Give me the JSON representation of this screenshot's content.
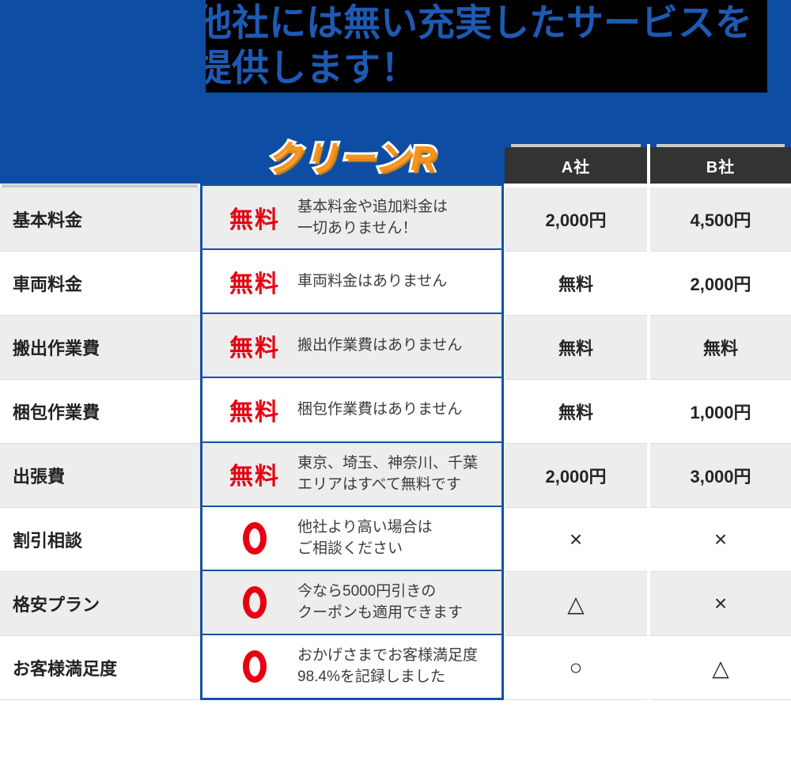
{
  "banner": {
    "headline_line1": "他社には無い充実したサービスを",
    "headline_line2": "提供します！",
    "logo": "クリーンR",
    "colors": {
      "banner_blue": "#0d4ea4",
      "headline_text_blue": "#1d5ab4",
      "headline_bg": "#000000",
      "logo_orange": "#f7941e",
      "frame_blue": "#1552a6",
      "accent_red": "#e60012",
      "header_dark": "#333333",
      "row_gray": "#ededed"
    }
  },
  "columns": {
    "company_a": "A社",
    "company_b": "B社"
  },
  "table": {
    "rows": [
      {
        "label": "基本料金",
        "badge": "無料",
        "mark": "free",
        "desc1": "基本料金や追加料金は",
        "desc2": "一切ありません！",
        "a": "2,000円",
        "b": "4,500円"
      },
      {
        "label": "車両料金",
        "badge": "無料",
        "mark": "free",
        "desc1": "車両料金はありません",
        "desc2": "",
        "a": "無料",
        "b": "2,000円"
      },
      {
        "label": "搬出作業費",
        "badge": "無料",
        "mark": "free",
        "desc1": "搬出作業費はありません",
        "desc2": "",
        "a": "無料",
        "b": "無料"
      },
      {
        "label": "梱包作業費",
        "badge": "無料",
        "mark": "free",
        "desc1": "梱包作業費はありません",
        "desc2": "",
        "a": "無料",
        "b": "1,000円"
      },
      {
        "label": "出張費",
        "badge": "無料",
        "mark": "free",
        "desc1": "東京、埼玉、神奈川、千葉",
        "desc2": "エリアはすべて無料です",
        "a": "2,000円",
        "b": "3,000円"
      },
      {
        "label": "割引相談",
        "badge": "",
        "mark": "circle",
        "desc1": "他社より高い場合は",
        "desc2": "ご相談ください",
        "a": "×",
        "b": "×"
      },
      {
        "label": "格安プラン",
        "badge": "",
        "mark": "circle",
        "desc1": "今なら5000円引きの",
        "desc2": "クーポンも適用できます",
        "a": "△",
        "b": "×"
      },
      {
        "label": "お客様満足度",
        "badge": "",
        "mark": "circle",
        "desc1": "おかげさまでお客様満足度",
        "desc2": "98.4%を記録しました",
        "a": "○",
        "b": "△"
      }
    ]
  }
}
